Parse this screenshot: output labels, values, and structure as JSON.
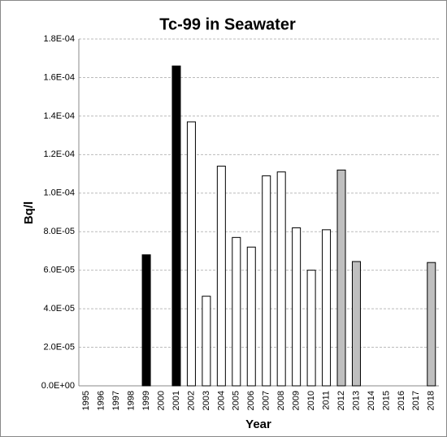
{
  "chart_data": {
    "type": "bar",
    "title": "Tc-99 in Seawater",
    "x_label": "Year",
    "y_label": "Bq/l",
    "categories": [
      "1995",
      "1996",
      "1997",
      "1998",
      "1999",
      "2000",
      "2001",
      "2002",
      "2003",
      "2004",
      "2005",
      "2006",
      "2007",
      "2008",
      "2009",
      "2010",
      "2011",
      "2012",
      "2013",
      "2014",
      "2015",
      "2016",
      "2017",
      "2018"
    ],
    "values": [
      null,
      null,
      null,
      null,
      6.8e-05,
      null,
      0.000166,
      0.000137,
      4.65e-05,
      0.000114,
      7.7e-05,
      7.2e-05,
      0.000109,
      0.000111,
      8.2e-05,
      6e-05,
      8.1e-05,
      0.000112,
      6.45e-05,
      null,
      null,
      null,
      null,
      6.4e-05
    ],
    "colors": [
      null,
      null,
      null,
      null,
      "#000000",
      null,
      "#000000",
      "#ffffff",
      "#ffffff",
      "#ffffff",
      "#ffffff",
      "#ffffff",
      "#ffffff",
      "#ffffff",
      "#ffffff",
      "#ffffff",
      "#ffffff",
      "#bfbfbf",
      "#bfbfbf",
      null,
      null,
      null,
      null,
      "#bfbfbf"
    ],
    "ylim": [
      0,
      0.00018
    ],
    "yticks": [
      {
        "value": 0,
        "label": "0.0E+00"
      },
      {
        "value": 2e-05,
        "label": "2.0E-05"
      },
      {
        "value": 4e-05,
        "label": "4.0E-05"
      },
      {
        "value": 6e-05,
        "label": "6.0E-05"
      },
      {
        "value": 8e-05,
        "label": "8.0E-05"
      },
      {
        "value": 0.0001,
        "label": "1.0E-04"
      },
      {
        "value": 0.00012,
        "label": "1.2E-04"
      },
      {
        "value": 0.00014,
        "label": "1.4E-04"
      },
      {
        "value": 0.00016,
        "label": "1.6E-04"
      },
      {
        "value": 0.00018,
        "label": "1.8E-04"
      }
    ],
    "grid": true
  }
}
